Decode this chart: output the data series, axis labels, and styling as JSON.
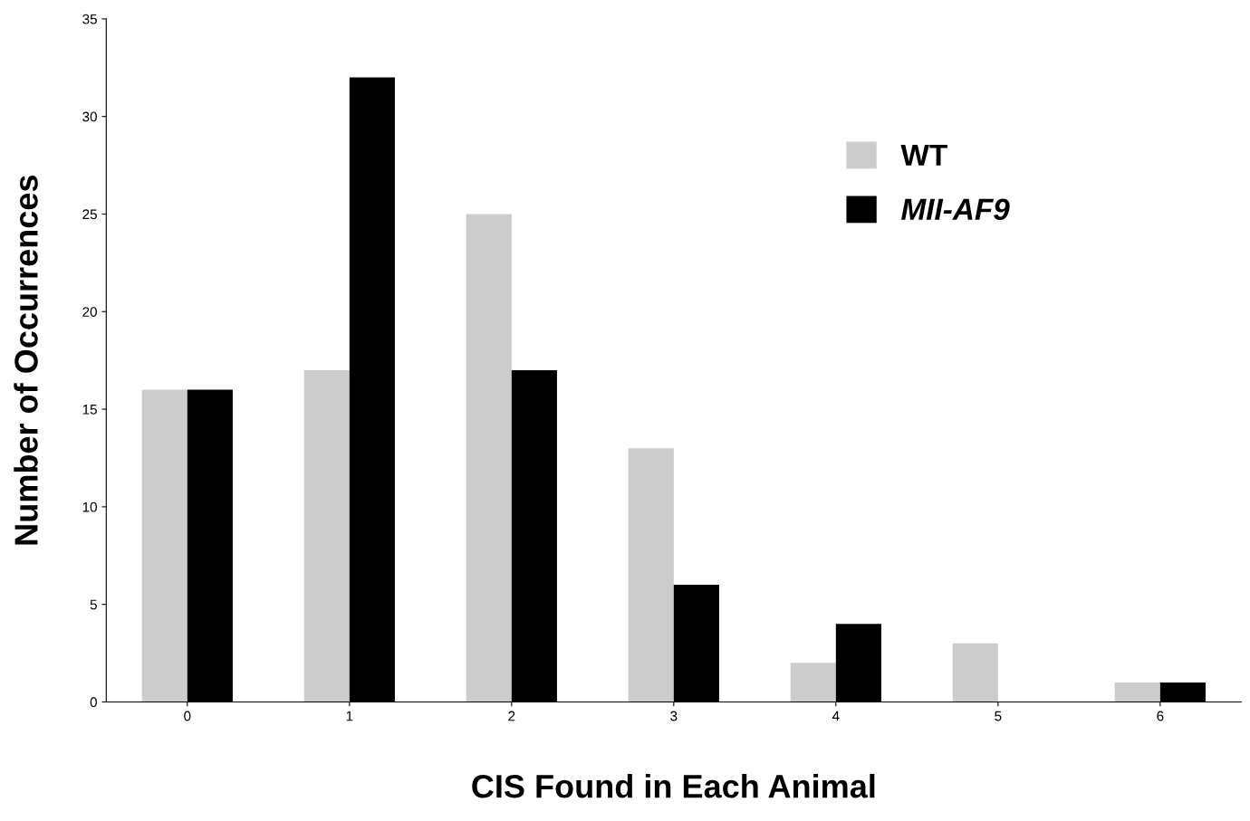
{
  "chart_data": {
    "type": "bar",
    "xlabel": "CIS Found in Each Animal",
    "ylabel": "Number of Occurrences",
    "categories": [
      "0",
      "1",
      "2",
      "3",
      "4",
      "5",
      "6"
    ],
    "series": [
      {
        "name": "WT",
        "color": "#cccccc",
        "values": [
          16,
          17,
          25,
          13,
          2,
          3,
          1
        ]
      },
      {
        "name": "MII-AF9",
        "color": "#000000",
        "values": [
          16,
          32,
          17,
          6,
          4,
          0,
          1
        ]
      }
    ],
    "ylim": [
      0,
      35
    ],
    "yticks": [
      0,
      5,
      10,
      15,
      20,
      25,
      30,
      35
    ],
    "grid": false,
    "legend": "top right"
  }
}
